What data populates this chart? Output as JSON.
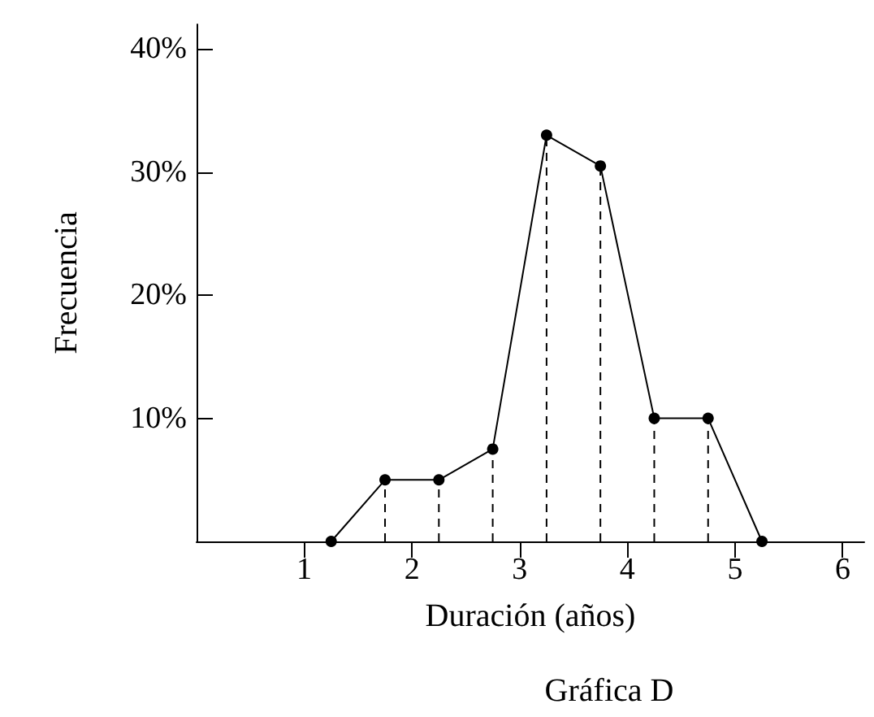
{
  "chart_data": {
    "type": "line",
    "title": "Gráfica D",
    "xlabel": "Duración (años)",
    "ylabel": "Frecuencia",
    "x": [
      1.25,
      1.75,
      2.25,
      2.75,
      3.25,
      3.75,
      4.25,
      4.75,
      5.25
    ],
    "series": [
      {
        "color": "#000000",
        "marker": "none",
        "line_style": "solid",
        "values": [
          0,
          5,
          5,
          7.5,
          33,
          30.5,
          10,
          10,
          0
        ]
      },
      {
        "type": "lollipop",
        "color": "#000000",
        "marker": "circle",
        "line_style": "dashed",
        "values": [
          0,
          5,
          5,
          7.5,
          33,
          30.5,
          10,
          10,
          0
        ]
      }
    ],
    "xlim": [
      0,
      6.2
    ],
    "xticks": [
      1,
      2,
      3,
      4,
      5,
      6
    ],
    "ylim": [
      0,
      42
    ],
    "yticks": [
      {
        "value": 10,
        "label": "10%"
      },
      {
        "value": 20,
        "label": "20%"
      },
      {
        "value": 30,
        "label": "30%"
      },
      {
        "value": 40,
        "label": "40%"
      }
    ],
    "grid": false
  }
}
